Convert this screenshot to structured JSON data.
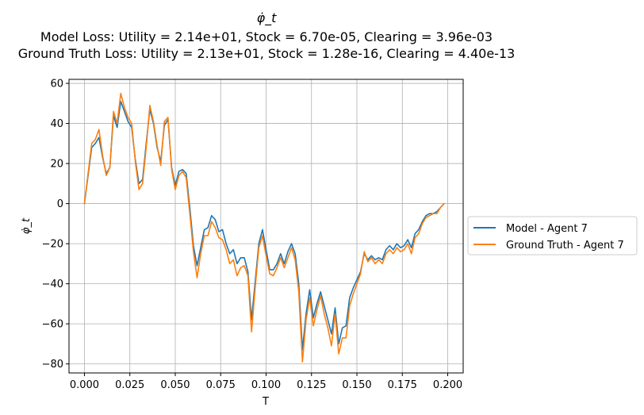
{
  "chart_data": {
    "type": "line",
    "title": "φ̇_t",
    "subtitle_lines": [
      "Model Loss: Utility = 2.14e+01, Stock = 6.70e-05, Clearing = 3.96e-03",
      "Ground Truth Loss: Utility = 2.13e+01, Stock = 1.28e-16, Clearing = 4.40e-13"
    ],
    "xlabel": "T",
    "ylabel": "φ̇_t",
    "xlim": [
      -0.0085,
      0.2085
    ],
    "ylim": [
      -84.5,
      62
    ],
    "xticks": [
      0.0,
      0.025,
      0.05,
      0.075,
      0.1,
      0.125,
      0.15,
      0.175,
      0.2
    ],
    "xtick_labels": [
      "0.000",
      "0.025",
      "0.050",
      "0.075",
      "0.100",
      "0.125",
      "0.150",
      "0.175",
      "0.200"
    ],
    "yticks": [
      60,
      40,
      20,
      0,
      -20,
      -40,
      -60,
      -80
    ],
    "ytick_labels": [
      "60",
      "40",
      "20",
      "0",
      "−20",
      "−40",
      "−60",
      "−80"
    ],
    "grid": true,
    "legend_position": "outside-right",
    "x": [
      0.0,
      0.002,
      0.004,
      0.006,
      0.008,
      0.01,
      0.012,
      0.014,
      0.016,
      0.018,
      0.02,
      0.022,
      0.024,
      0.026,
      0.028,
      0.03,
      0.032,
      0.034,
      0.036,
      0.038,
      0.04,
      0.042,
      0.044,
      0.046,
      0.048,
      0.05,
      0.052,
      0.054,
      0.056,
      0.058,
      0.06,
      0.062,
      0.064,
      0.066,
      0.068,
      0.07,
      0.072,
      0.074,
      0.076,
      0.078,
      0.08,
      0.082,
      0.084,
      0.086,
      0.088,
      0.09,
      0.092,
      0.094,
      0.096,
      0.098,
      0.1,
      0.102,
      0.104,
      0.106,
      0.108,
      0.11,
      0.112,
      0.114,
      0.116,
      0.118,
      0.12,
      0.122,
      0.124,
      0.126,
      0.128,
      0.13,
      0.132,
      0.134,
      0.136,
      0.138,
      0.14,
      0.142,
      0.144,
      0.146,
      0.148,
      0.15,
      0.152,
      0.154,
      0.156,
      0.158,
      0.16,
      0.162,
      0.164,
      0.166,
      0.168,
      0.17,
      0.172,
      0.174,
      0.176,
      0.178,
      0.18,
      0.182,
      0.184,
      0.186,
      0.188,
      0.19,
      0.192,
      0.194,
      0.196,
      0.198
    ],
    "series": [
      {
        "name": "Model - Agent 7",
        "color": "#1f77b4",
        "values": [
          0,
          14,
          28,
          30,
          33,
          23,
          15,
          18,
          44,
          38,
          51,
          46,
          41,
          38,
          22,
          10,
          12,
          30,
          47,
          40,
          28,
          21,
          39,
          42,
          18,
          9,
          16,
          17,
          15,
          -2,
          -21,
          -31,
          -22,
          -13,
          -12,
          -6,
          -8,
          -14,
          -13,
          -20,
          -25,
          -23,
          -30,
          -27,
          -27,
          -34,
          -58,
          -39,
          -20,
          -13,
          -23,
          -33,
          -33,
          -30,
          -25,
          -30,
          -24,
          -20,
          -25,
          -40,
          -73,
          -55,
          -43,
          -57,
          -50,
          -44,
          -51,
          -58,
          -65,
          -52,
          -70,
          -62,
          -61,
          -47,
          -42,
          -38,
          -34,
          -25,
          -28,
          -26,
          -28,
          -27,
          -28,
          -23,
          -21,
          -23,
          -20,
          -22,
          -21,
          -18,
          -22,
          -15,
          -13,
          -9,
          -6,
          -5,
          -5,
          -4,
          -2,
          0
        ]
      },
      {
        "name": "Ground Truth - Agent 7",
        "color": "#ff7f0e",
        "values": [
          0,
          15,
          30,
          32,
          37,
          24,
          14,
          18,
          46,
          40,
          55,
          48,
          43,
          40,
          21,
          7,
          10,
          28,
          49,
          41,
          29,
          19,
          41,
          43,
          17,
          7,
          14,
          16,
          13,
          -5,
          -24,
          -37,
          -25,
          -16,
          -16,
          -9,
          -12,
          -17,
          -18,
          -23,
          -30,
          -28,
          -36,
          -32,
          -31,
          -36,
          -64,
          -42,
          -22,
          -16,
          -26,
          -35,
          -36,
          -32,
          -27,
          -32,
          -27,
          -22,
          -28,
          -44,
          -79,
          -58,
          -47,
          -61,
          -53,
          -46,
          -55,
          -62,
          -71,
          -55,
          -75,
          -67,
          -67,
          -51,
          -45,
          -40,
          -35,
          -24,
          -29,
          -27,
          -30,
          -28,
          -30,
          -25,
          -23,
          -25,
          -22,
          -24,
          -23,
          -20,
          -25,
          -17,
          -15,
          -10,
          -7,
          -6,
          -5,
          -5,
          -2,
          0
        ]
      }
    ]
  }
}
